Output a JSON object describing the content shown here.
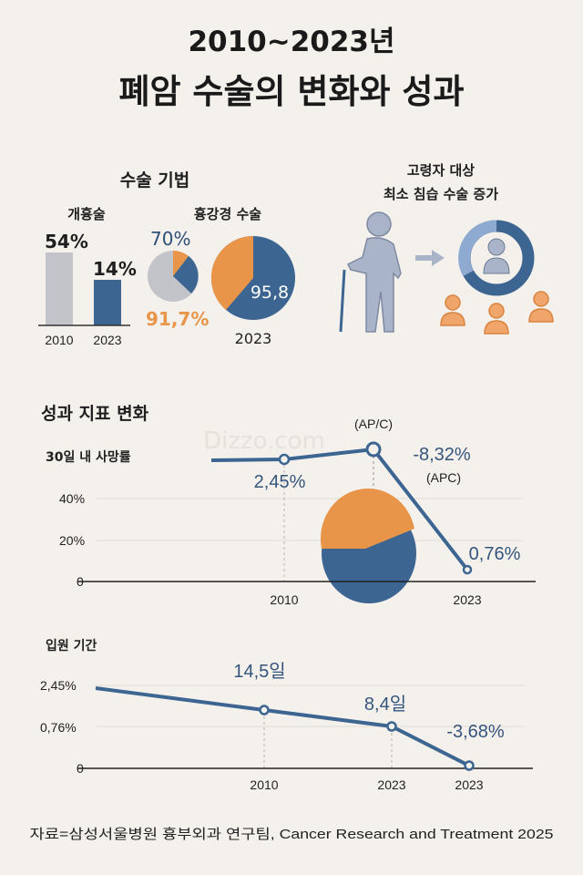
{
  "title": {
    "line1": "2010~2023년",
    "line2": "폐암 수술의 변화와 성과"
  },
  "colors": {
    "background": "#f4f1ec",
    "blue": "#3d6591",
    "orange": "#e8954a",
    "gray": "#c3c4c9",
    "light_blue": "#8eaad0"
  },
  "surgery": {
    "heading": "수술 기법",
    "open": {
      "label": "개흉술",
      "bars": [
        {
          "year": "2010",
          "value": 54,
          "label": "54%"
        },
        {
          "year": "2023",
          "value": 14,
          "label": "14%"
        }
      ]
    },
    "vats": {
      "label": "흉강경 수술",
      "small_pie_top_label": "70%",
      "small_pie_bottom_label": "91,7%",
      "big_pie_label": "95,8",
      "big_pie_year": "2023"
    }
  },
  "elderly": {
    "line1": "고령자 대상",
    "line2": "최소 침습 수술 증가",
    "icons": [
      "elderly-person-icon",
      "arrow-right-icon",
      "donut-person-icon",
      "people-icon"
    ]
  },
  "outcomes": {
    "heading": "성과 지표 변화",
    "watermark": "Dizzo.com"
  },
  "chart_data": [
    {
      "type": "line",
      "title": "30일 내 사망률",
      "yticks": [
        "40%",
        "20%",
        "0"
      ],
      "xticks": [
        "2010",
        "2023"
      ],
      "annotations": {
        "p1": "2,45%",
        "peak_top": "(AP/C)",
        "apc": "-8,32%",
        "apc_unit": "(APC)",
        "end": "0,76%"
      },
      "points": [
        {
          "x": "2010",
          "label": "2,45%"
        },
        {
          "x": "peak",
          "label": "(AP/C)"
        },
        {
          "x": "2023",
          "label": "0,76%"
        }
      ]
    },
    {
      "type": "line",
      "title": "입원 기간",
      "yticks": [
        "2,45%",
        "0,76%",
        "0"
      ],
      "xticks": [
        "2010",
        "2023",
        "2023"
      ],
      "annotations": {
        "p1": "14,5일",
        "p2": "8,4일",
        "p3": "-3,68%"
      }
    }
  ],
  "source": "자료=삼성서울병원 흉부외과 연구팀, Cancer Research and Treatment 2025"
}
